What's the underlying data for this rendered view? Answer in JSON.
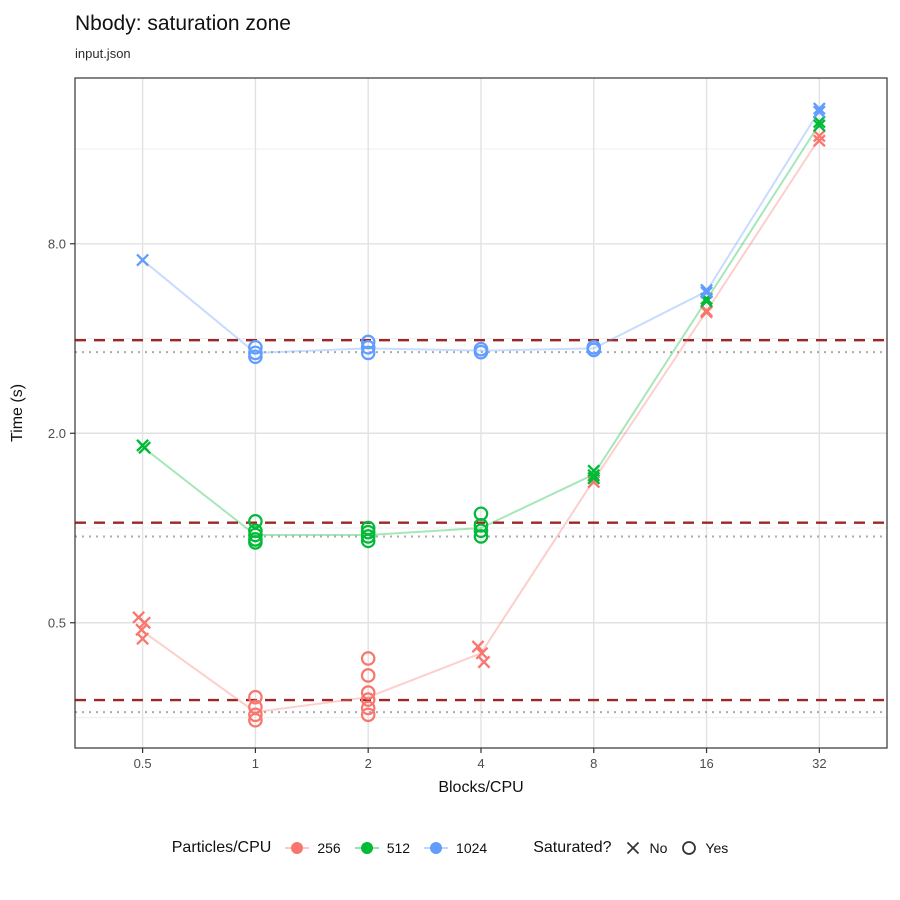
{
  "chart_data": {
    "type": "scatter",
    "title": "Nbody: saturation zone",
    "subtitle": "input.json",
    "xlabel": "Blocks/CPU",
    "ylabel": "Time (s)",
    "x_scale": "log2",
    "y_scale": "log10",
    "x_ticks": [
      0.5,
      1,
      2,
      4,
      8,
      16,
      32
    ],
    "y_ticks": [
      0.5,
      2,
      8
    ],
    "y_minor_ticks": [
      0.25,
      1,
      4,
      16
    ],
    "xlim": [
      0.33,
      48.5
    ],
    "ylim": [
      0.2,
      26.9
    ],
    "grid": true,
    "legend_position": "bottom",
    "hlines": {
      "dashed": {
        "color": "#9E2626",
        "values": [
          3.95,
          1.04,
          0.284
        ]
      },
      "dotted": {
        "color": "#ABABAB",
        "values": [
          3.62,
          0.94,
          0.26
        ]
      }
    },
    "series": [
      {
        "name": "256",
        "color": "#F8766D",
        "line": [
          [
            0.5,
            0.47
          ],
          [
            1,
            0.26
          ],
          [
            2,
            0.29
          ],
          [
            4,
            0.4
          ],
          [
            8,
            1.42
          ],
          [
            16,
            4.88
          ],
          [
            32,
            17.3
          ]
        ],
        "points": [
          {
            "x": 0.5,
            "y": 0.52,
            "saturated": "No",
            "dx": -4
          },
          {
            "x": 0.5,
            "y": 0.5,
            "saturated": "No",
            "dx": 2
          },
          {
            "x": 0.5,
            "y": 0.475,
            "saturated": "No",
            "dx": -1
          },
          {
            "x": 0.5,
            "y": 0.445,
            "saturated": "No",
            "dx": 0
          },
          {
            "x": 1,
            "y": 0.29,
            "saturated": "Yes"
          },
          {
            "x": 1,
            "y": 0.27,
            "saturated": "Yes"
          },
          {
            "x": 1,
            "y": 0.255,
            "saturated": "Yes"
          },
          {
            "x": 1,
            "y": 0.245,
            "saturated": "Yes"
          },
          {
            "x": 2,
            "y": 0.385,
            "saturated": "Yes"
          },
          {
            "x": 2,
            "y": 0.34,
            "saturated": "Yes"
          },
          {
            "x": 2,
            "y": 0.3,
            "saturated": "Yes"
          },
          {
            "x": 2,
            "y": 0.285,
            "saturated": "Yes"
          },
          {
            "x": 2,
            "y": 0.268,
            "saturated": "Yes"
          },
          {
            "x": 2,
            "y": 0.255,
            "saturated": "Yes"
          },
          {
            "x": 4,
            "y": 0.42,
            "saturated": "No",
            "dx": -3
          },
          {
            "x": 4,
            "y": 0.4,
            "saturated": "No",
            "dx": 1
          },
          {
            "x": 4,
            "y": 0.375,
            "saturated": "No",
            "dx": 3
          },
          {
            "x": 8,
            "y": 1.44,
            "saturated": "No"
          },
          {
            "x": 8,
            "y": 1.4,
            "saturated": "No"
          },
          {
            "x": 16,
            "y": 4.9,
            "saturated": "No"
          },
          {
            "x": 16,
            "y": 4.85,
            "saturated": "No"
          },
          {
            "x": 32,
            "y": 17.6,
            "saturated": "No"
          },
          {
            "x": 32,
            "y": 17.0,
            "saturated": "No"
          }
        ]
      },
      {
        "name": "512",
        "color": "#00BA38",
        "line": [
          [
            0.5,
            1.81
          ],
          [
            1,
            0.95
          ],
          [
            2,
            0.95
          ],
          [
            4,
            1.0
          ],
          [
            8,
            1.48
          ],
          [
            16,
            5.3
          ],
          [
            32,
            19.2
          ]
        ],
        "points": [
          {
            "x": 0.5,
            "y": 1.83,
            "saturated": "No"
          },
          {
            "x": 0.5,
            "y": 1.8,
            "saturated": "No",
            "dx": 2
          },
          {
            "x": 1,
            "y": 1.05,
            "saturated": "Yes"
          },
          {
            "x": 1,
            "y": 0.98,
            "saturated": "Yes"
          },
          {
            "x": 1,
            "y": 0.95,
            "saturated": "Yes"
          },
          {
            "x": 1,
            "y": 0.92,
            "saturated": "Yes"
          },
          {
            "x": 1,
            "y": 0.9,
            "saturated": "Yes"
          },
          {
            "x": 2,
            "y": 1.0,
            "saturated": "Yes"
          },
          {
            "x": 2,
            "y": 0.97,
            "saturated": "Yes"
          },
          {
            "x": 2,
            "y": 0.94,
            "saturated": "Yes"
          },
          {
            "x": 2,
            "y": 0.91,
            "saturated": "Yes"
          },
          {
            "x": 4,
            "y": 1.11,
            "saturated": "Yes"
          },
          {
            "x": 4,
            "y": 1.02,
            "saturated": "Yes"
          },
          {
            "x": 4,
            "y": 0.98,
            "saturated": "Yes"
          },
          {
            "x": 4,
            "y": 0.94,
            "saturated": "Yes"
          },
          {
            "x": 8,
            "y": 1.52,
            "saturated": "No"
          },
          {
            "x": 8,
            "y": 1.47,
            "saturated": "No"
          },
          {
            "x": 8,
            "y": 1.44,
            "saturated": "No"
          },
          {
            "x": 16,
            "y": 5.35,
            "saturated": "No"
          },
          {
            "x": 16,
            "y": 5.25,
            "saturated": "No"
          },
          {
            "x": 32,
            "y": 19.5,
            "saturated": "No"
          },
          {
            "x": 32,
            "y": 19.0,
            "saturated": "No"
          }
        ]
      },
      {
        "name": "1024",
        "color": "#619CFF",
        "line": [
          [
            0.5,
            7.1
          ],
          [
            1,
            3.6
          ],
          [
            2,
            3.72
          ],
          [
            4,
            3.66
          ],
          [
            8,
            3.72
          ],
          [
            16,
            5.65
          ],
          [
            32,
            21.2
          ]
        ],
        "points": [
          {
            "x": 0.5,
            "y": 7.1,
            "saturated": "No"
          },
          {
            "x": 1,
            "y": 3.75,
            "saturated": "Yes"
          },
          {
            "x": 1,
            "y": 3.6,
            "saturated": "Yes"
          },
          {
            "x": 1,
            "y": 3.5,
            "saturated": "Yes"
          },
          {
            "x": 2,
            "y": 3.9,
            "saturated": "Yes"
          },
          {
            "x": 2,
            "y": 3.75,
            "saturated": "Yes"
          },
          {
            "x": 2,
            "y": 3.6,
            "saturated": "Yes"
          },
          {
            "x": 4,
            "y": 3.7,
            "saturated": "Yes"
          },
          {
            "x": 4,
            "y": 3.62,
            "saturated": "Yes"
          },
          {
            "x": 8,
            "y": 3.75,
            "saturated": "Yes"
          },
          {
            "x": 8,
            "y": 3.68,
            "saturated": "Yes"
          },
          {
            "x": 16,
            "y": 5.7,
            "saturated": "No"
          },
          {
            "x": 16,
            "y": 5.6,
            "saturated": "No"
          },
          {
            "x": 32,
            "y": 21.5,
            "saturated": "No"
          },
          {
            "x": 32,
            "y": 21.0,
            "saturated": "No"
          }
        ]
      }
    ]
  },
  "legend": {
    "color": {
      "title": "Particles/CPU",
      "items": [
        {
          "label": "256"
        },
        {
          "label": "512"
        },
        {
          "label": "1024"
        }
      ]
    },
    "shape": {
      "title": "Saturated?",
      "items": [
        {
          "label": "No",
          "marker": "x"
        },
        {
          "label": "Yes",
          "marker": "circle"
        }
      ]
    }
  }
}
